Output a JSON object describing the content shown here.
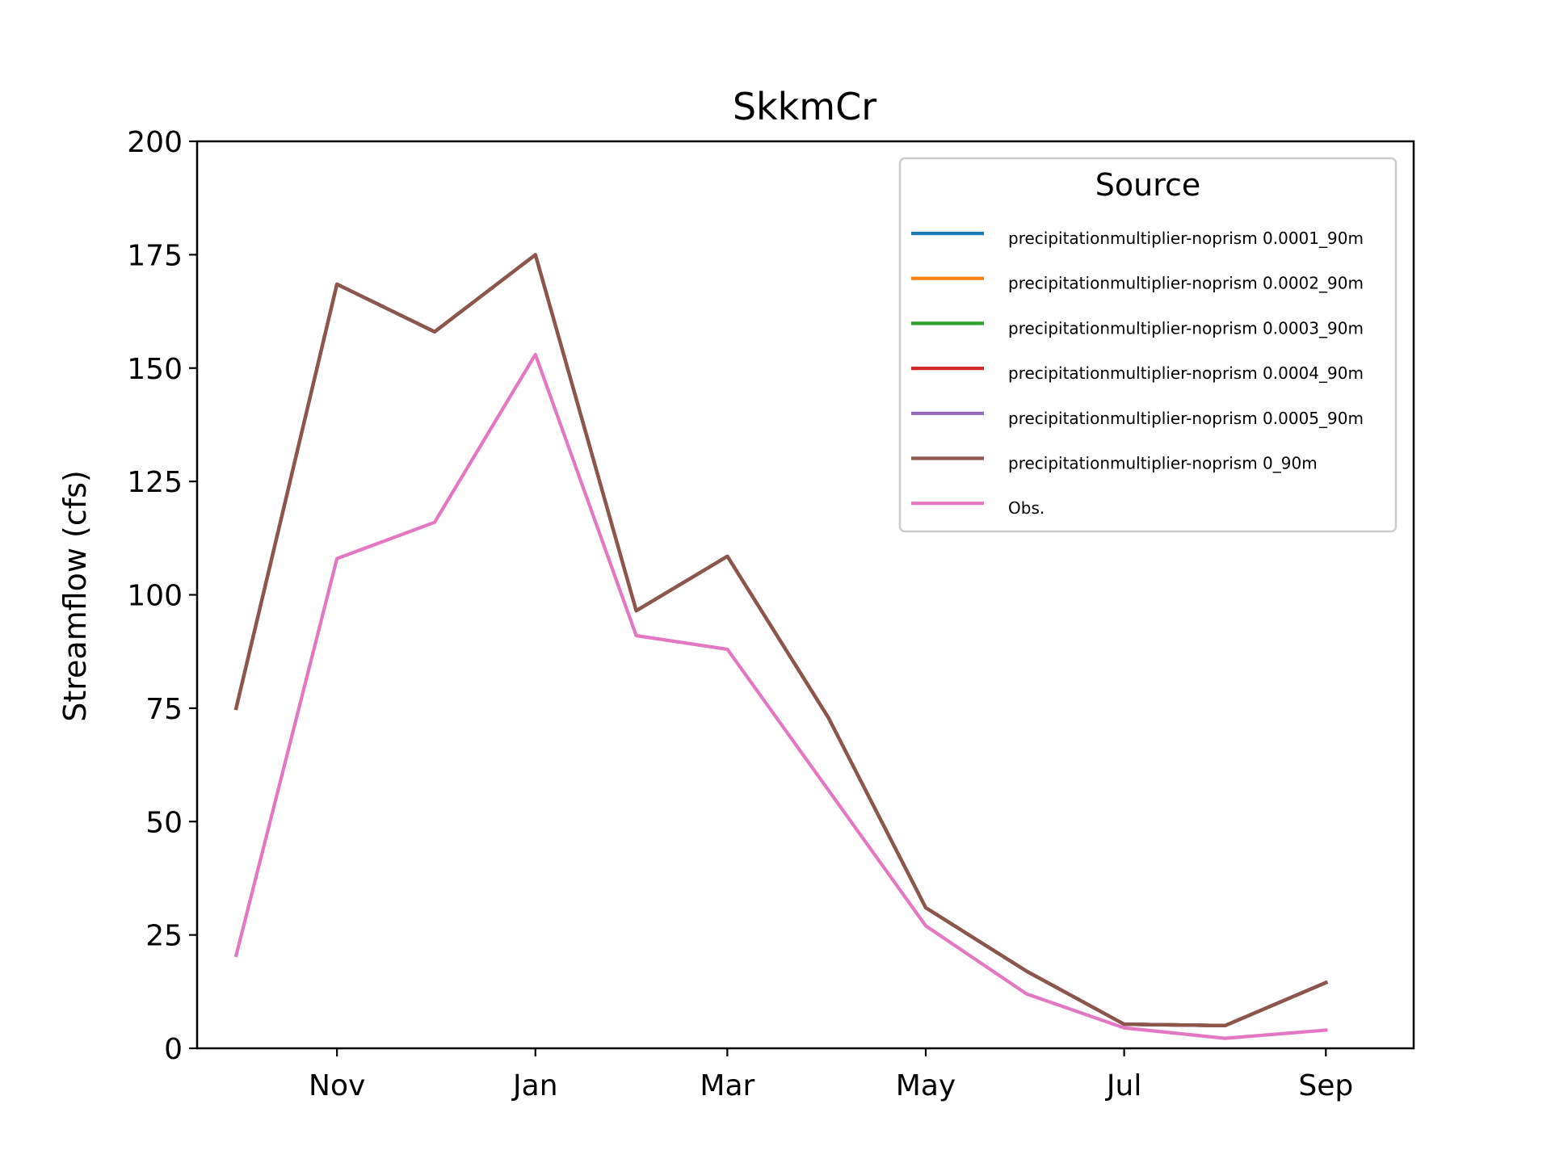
{
  "chart_data": {
    "type": "line",
    "title": "SkkmCr",
    "xlabel": "",
    "ylabel": "Streamflow (cfs)",
    "ylim": [
      0,
      200
    ],
    "yticks": [
      0,
      25,
      50,
      75,
      100,
      125,
      150,
      175,
      200
    ],
    "x": [
      "2020-10-01",
      "2020-11-01",
      "2020-12-01",
      "2021-01-01",
      "2021-02-01",
      "2021-03-01",
      "2021-04-01",
      "2021-05-01",
      "2021-06-01",
      "2021-07-01",
      "2021-08-01",
      "2021-09-01"
    ],
    "xlim": [
      "2020-09-19",
      "2021-09-28"
    ],
    "xtick_labels": [
      "Nov",
      "Jan",
      "Mar",
      "May",
      "Jul",
      "Sep"
    ],
    "xtick_dates": [
      "2020-11-01",
      "2021-01-01",
      "2021-03-01",
      "2021-05-01",
      "2021-07-01",
      "2021-09-01"
    ],
    "legend": {
      "title": "Source",
      "placement": "upper right"
    },
    "series": [
      {
        "name": "precipitationmultiplier-noprism 0.0001_90m",
        "color": "#1f77b4",
        "values": [
          75,
          168.5,
          158,
          175,
          96.5,
          108.5,
          73,
          31,
          17,
          5.3,
          5,
          14.5
        ]
      },
      {
        "name": "precipitationmultiplier-noprism 0.0002_90m",
        "color": "#ff7f0e",
        "values": [
          75,
          168.5,
          158,
          175,
          96.5,
          108.5,
          73,
          31,
          17,
          5.3,
          5,
          14.5
        ]
      },
      {
        "name": "precipitationmultiplier-noprism 0.0003_90m",
        "color": "#2ca02c",
        "values": [
          75,
          168.5,
          158,
          175,
          96.5,
          108.5,
          73,
          31,
          17,
          5.3,
          5,
          14.5
        ]
      },
      {
        "name": "precipitationmultiplier-noprism 0.0004_90m",
        "color": "#d62728",
        "values": [
          75,
          168.5,
          158,
          175,
          96.5,
          108.5,
          73,
          31,
          17,
          5.3,
          5,
          14.5
        ]
      },
      {
        "name": "precipitationmultiplier-noprism 0.0005_90m",
        "color": "#9467bd",
        "values": [
          75,
          168.5,
          158,
          175,
          96.5,
          108.5,
          73,
          31,
          17,
          5.3,
          5,
          14.5
        ]
      },
      {
        "name": "precipitationmultiplier-noprism 0_90m",
        "color": "#8c564b",
        "values": [
          75,
          168.5,
          158,
          175,
          96.5,
          108.5,
          73,
          31,
          17,
          5.3,
          5,
          14.5
        ]
      },
      {
        "name": "Obs.",
        "color": "#e377c2",
        "values": [
          20.5,
          108,
          116,
          153,
          91,
          88,
          57,
          27,
          12,
          4.5,
          2.2,
          4
        ]
      }
    ]
  }
}
